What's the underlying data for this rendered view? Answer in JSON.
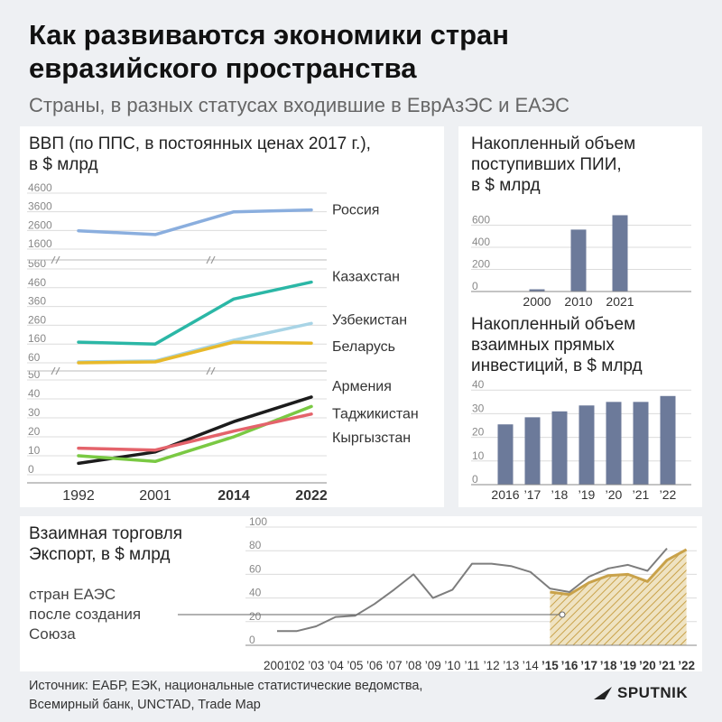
{
  "header": {
    "title": "Как развиваются экономики стран евразийского пространства",
    "subtitle": "Страны, в разных статусах входившие в ЕврАзЭС и ЕАЭС"
  },
  "gdp_panel": {
    "title_line1": "ВВП (по ППС, в постоянных ценах 2017 г.),",
    "title_line2": "в $ млрд"
  },
  "fdi_panel": {
    "title_line1": "Накопленный объем",
    "title_line2": "поступивших ПИИ,",
    "title_line3": "в $ млрд"
  },
  "mutual_panel": {
    "title_line1": "Накопленный объем",
    "title_line2": "взаимных прямых",
    "title_line3": "инвестиций, в $ млрд"
  },
  "trade_panel": {
    "title_line1": "Взаимная торговля",
    "title_line2": "Экспорт, в $ млрд",
    "annotation_line1": "стран ЕАЭС",
    "annotation_line2": "после создания",
    "annotation_line3": "Союза"
  },
  "footer": {
    "source_line1": "Источник: ЕАБР, ЕЭК, национальные статистические ведомства,",
    "source_line2": "Всемирный банк, UNCTAD, Trade Map",
    "logo": "SPUTNIK"
  },
  "colors": {
    "russia": "#8aaede",
    "kazakhstan": "#2bb7a6",
    "uzbekistan": "#a8d4e6",
    "belarus": "#e8b92a",
    "armenia": "#1c1c1c",
    "tajikistan": "#7ac943",
    "kyrgyzstan": "#e4636b",
    "bar": "#6c7a9a",
    "trade_line": "#7d7d7d",
    "eaeu_fill": "#c9a24a"
  },
  "chart_data": [
    {
      "type": "line",
      "title": "ВВП (по ППС, в постоянных ценах 2017 г.), в $ млрд",
      "x": [
        "1992",
        "2001",
        "2014",
        "2022"
      ],
      "x_bold": [
        false,
        false,
        true,
        true
      ],
      "axis_breaks": true,
      "sections": [
        {
          "yticks": [
            "4600",
            "3600",
            "2600",
            "1600"
          ],
          "ylim": [
            1600,
            4600
          ],
          "series": [
            {
              "name": "Россия",
              "values": [
                2580,
                2380,
                3600,
                3700
              ],
              "color_key": "russia"
            }
          ]
        },
        {
          "yticks": [
            "560",
            "460",
            "360",
            "260",
            "160",
            "60"
          ],
          "ylim": [
            60,
            560
          ],
          "series": [
            {
              "name": "Казахстан",
              "values": [
                170,
                160,
                400,
                490
              ],
              "color_key": "kazakhstan"
            },
            {
              "name": "Узбекистан",
              "values": [
                65,
                70,
                180,
                270
              ],
              "color_key": "uzbekistan"
            },
            {
              "name": "Беларусь",
              "values": [
                60,
                65,
                170,
                165
              ],
              "color_key": "belarus"
            }
          ]
        },
        {
          "yticks": [
            "50",
            "40",
            "30",
            "20",
            "10",
            "0"
          ],
          "ylim": [
            0,
            50
          ],
          "series": [
            {
              "name": "Армения",
              "values": [
                6,
                12,
                28,
                41
              ],
              "color_key": "armenia"
            },
            {
              "name": "Таджикистан",
              "values": [
                10,
                7,
                20,
                36
              ],
              "color_key": "tajikistan"
            },
            {
              "name": "Кыргызстан",
              "values": [
                14,
                13,
                23,
                32
              ],
              "color_key": "kyrgyzstan"
            }
          ]
        }
      ]
    },
    {
      "type": "bar",
      "title": "Накопленный объем поступивших ПИИ, в $ млрд",
      "categories": [
        "2000",
        "2010",
        "2021"
      ],
      "values": [
        20,
        560,
        690
      ],
      "yticks": [
        "0",
        "200",
        "400",
        "600"
      ],
      "ylim": [
        0,
        800
      ]
    },
    {
      "type": "bar",
      "title": "Накопленный объем взаимных прямых инвестиций, в $ млрд",
      "categories": [
        "2016",
        "’17",
        "’18",
        "’19",
        "’20",
        "’21",
        "’22"
      ],
      "values": [
        25.5,
        28.5,
        31,
        33.5,
        35,
        35,
        37.5
      ],
      "yticks": [
        "0",
        "10",
        "20",
        "30",
        "40"
      ],
      "ylim": [
        0,
        42
      ]
    },
    {
      "type": "line",
      "title": "Взаимная торговля Экспорт, в $ млрд",
      "x": [
        "2001",
        "’02",
        "’03",
        "’04",
        "’05",
        "’06",
        "’07",
        "’08",
        "’09",
        "’10",
        "’11",
        "’12",
        "’13",
        "’14",
        "’15",
        "’16",
        "’17",
        "’18",
        "’19",
        "’20",
        "’21",
        "’22"
      ],
      "x_bold": [
        false,
        false,
        false,
        false,
        false,
        false,
        false,
        false,
        false,
        false,
        false,
        false,
        false,
        false,
        true,
        true,
        true,
        true,
        true,
        true,
        true,
        true
      ],
      "yticks": [
        "0",
        "20",
        "40",
        "60",
        "80",
        "100"
      ],
      "ylim": [
        0,
        100
      ],
      "series": [
        {
          "values": [
            12,
            12,
            16,
            24,
            25,
            35,
            47,
            60,
            40,
            47,
            69,
            69,
            67,
            62,
            48,
            45,
            58,
            65,
            68,
            63,
            82,
            null
          ],
          "color_key": "trade_line"
        },
        {
          "values": [
            null,
            null,
            null,
            null,
            null,
            null,
            null,
            null,
            null,
            null,
            null,
            null,
            null,
            null,
            45,
            43,
            53,
            59,
            60,
            54,
            72,
            81
          ],
          "color_key": "eaeu_fill",
          "area": true
        }
      ]
    }
  ]
}
